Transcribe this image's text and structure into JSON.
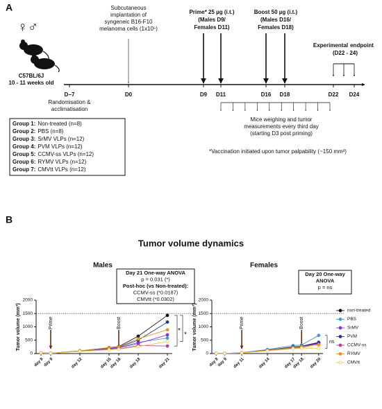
{
  "panel_a": {
    "label": "A",
    "gender_symbols": "♀♂",
    "strain": [
      "C57BL/6J",
      "10 - 11 weeks old"
    ],
    "implantation": [
      "Subcutaneous",
      "implantation of",
      "syngeneic B16-F10",
      "melanoma cells (1x10⁵)"
    ],
    "prime": [
      "Prime* 25 µg (i.t.)",
      "(Males D9/",
      "Females D11)"
    ],
    "boost": [
      "Boost 50 µg (i.t.)",
      "(Males D16/",
      "Females D18)"
    ],
    "endpoint": [
      "Experimental",
      "endpoint",
      "(D22 - 24)"
    ],
    "days": [
      "D−7",
      "D0",
      "D9",
      "D11",
      "D16",
      "D18",
      "D22",
      "D24"
    ],
    "randomisation": [
      "Randomisation &",
      "acclimatisation"
    ],
    "measurements": [
      "Mice weighing and tumor",
      "measurements every third day",
      "(starting D3 post priming)"
    ],
    "groups": [
      {
        "label": "Group 1:",
        "text": "Non-treated (n=8)"
      },
      {
        "label": "Group 2:",
        "text": "PBS (n=8)"
      },
      {
        "label": "Group 3:",
        "text": "SrMV VLPs (n=12)"
      },
      {
        "label": "Group 4:",
        "text": "PVM VLPs (n=12)"
      },
      {
        "label": "Group 5:",
        "text": "CCMV-ss VLPs (n=12)"
      },
      {
        "label": "Group 6:",
        "text": "RYMV VLPs (n=12)"
      },
      {
        "label": "Group 7:",
        "text": "CMVtt VLPs (n=12)"
      }
    ],
    "note": "*Vaccination initiated upon tumor palpability (~150 mm³)"
  },
  "panel_b": {
    "label": "B",
    "title": "Tumor volume dynamics"
  },
  "chart_data": [
    {
      "type": "line",
      "title": "Males",
      "y_label": "Tumor volume (mm³)",
      "x": [
        8,
        9,
        12,
        15,
        16,
        18,
        21
      ],
      "xlim": [
        7.5,
        21.5
      ],
      "xticks": [
        {
          "value": 8,
          "label": "day 8"
        },
        {
          "value": 9,
          "label": "day 9"
        },
        {
          "value": 12,
          "label": "day 12"
        },
        {
          "value": 15,
          "label": "day 15"
        },
        {
          "value": 16,
          "label": "day 16"
        },
        {
          "value": 18,
          "label": "day 18"
        },
        {
          "value": 21,
          "label": "day 21"
        }
      ],
      "ylim": [
        0,
        2000
      ],
      "yticks": [
        0,
        500,
        1000,
        1500,
        2000
      ],
      "reference_line": 1500,
      "annotations": [
        {
          "text": "Prime",
          "x": 9
        },
        {
          "text": "Boost",
          "x": 16
        }
      ],
      "stats_box": [
        "Day 21 One-way ANOVA",
        "p = 0.031 (*)",
        "Post-hoc (vs Non-treated):",
        "CCMV-ss (*0.0187)",
        "CMVtt (*0.0302)"
      ],
      "significance": [
        "*",
        "*"
      ],
      "series": [
        {
          "name": "non-treated",
          "color": "#111111",
          "values": [
            30,
            10,
            100,
            220,
            260,
            650,
            1430
          ]
        },
        {
          "name": "PBS",
          "color": "#4a9ac8",
          "values": [
            30,
            10,
            95,
            180,
            220,
            420,
            580
          ]
        },
        {
          "name": "SrMV",
          "color": "#8a2be2",
          "values": [
            25,
            10,
            90,
            170,
            210,
            380,
            700
          ]
        },
        {
          "name": "PVM",
          "color": "#1f3a9e",
          "values": [
            30,
            10,
            100,
            200,
            240,
            500,
            1180
          ]
        },
        {
          "name": "CCMV-ss",
          "color": "#c0399a",
          "values": [
            25,
            10,
            85,
            150,
            170,
            300,
            280
          ]
        },
        {
          "name": "RYMV",
          "color": "#e8902a",
          "values": [
            30,
            10,
            100,
            210,
            250,
            550,
            890
          ]
        },
        {
          "name": "CMVtt",
          "color": "#e8c840",
          "hollow": true,
          "values": [
            25,
            10,
            80,
            140,
            160,
            260,
            450
          ]
        }
      ]
    },
    {
      "type": "line",
      "title": "Females",
      "y_label": "Tumor volume (mm³)",
      "x": [
        8,
        9,
        11,
        14,
        17,
        18,
        20
      ],
      "xlim": [
        7.5,
        20.5
      ],
      "xticks": [
        {
          "value": 8,
          "label": "day 8"
        },
        {
          "value": 9,
          "label": "day 9"
        },
        {
          "value": 11,
          "label": "day 11"
        },
        {
          "value": 14,
          "label": "day 14"
        },
        {
          "value": 17,
          "label": "day 17"
        },
        {
          "value": 18,
          "label": "day 18"
        },
        {
          "value": 20,
          "label": "day 20"
        }
      ],
      "ylim": [
        0,
        2000
      ],
      "yticks": [
        0,
        500,
        1000,
        1500,
        2000
      ],
      "reference_line": 1500,
      "annotations": [
        {
          "text": "Prime",
          "x": 11
        },
        {
          "text": "Boost",
          "x": 18
        }
      ],
      "stats_box": [
        "Day 20 One-way",
        "ANOVA",
        "p = ns"
      ],
      "significance": [
        "ns"
      ],
      "series": [
        {
          "color": "#111111",
          "values": [
            5,
            5,
            30,
            130,
            230,
            260,
            400
          ]
        },
        {
          "color": "#4a9ac8",
          "values": [
            5,
            5,
            35,
            150,
            300,
            320,
            680
          ]
        },
        {
          "color": "#8a2be2",
          "values": [
            5,
            5,
            30,
            120,
            220,
            250,
            380
          ]
        },
        {
          "color": "#1f3a9e",
          "values": [
            5,
            5,
            30,
            130,
            250,
            280,
            420
          ]
        },
        {
          "color": "#c0399a",
          "values": [
            5,
            5,
            25,
            110,
            200,
            230,
            350
          ]
        },
        {
          "color": "#e8902a",
          "values": [
            5,
            5,
            30,
            120,
            220,
            260,
            330
          ]
        },
        {
          "color": "#e8c840",
          "hollow": true,
          "values": [
            5,
            5,
            25,
            100,
            180,
            200,
            200
          ]
        }
      ]
    }
  ]
}
